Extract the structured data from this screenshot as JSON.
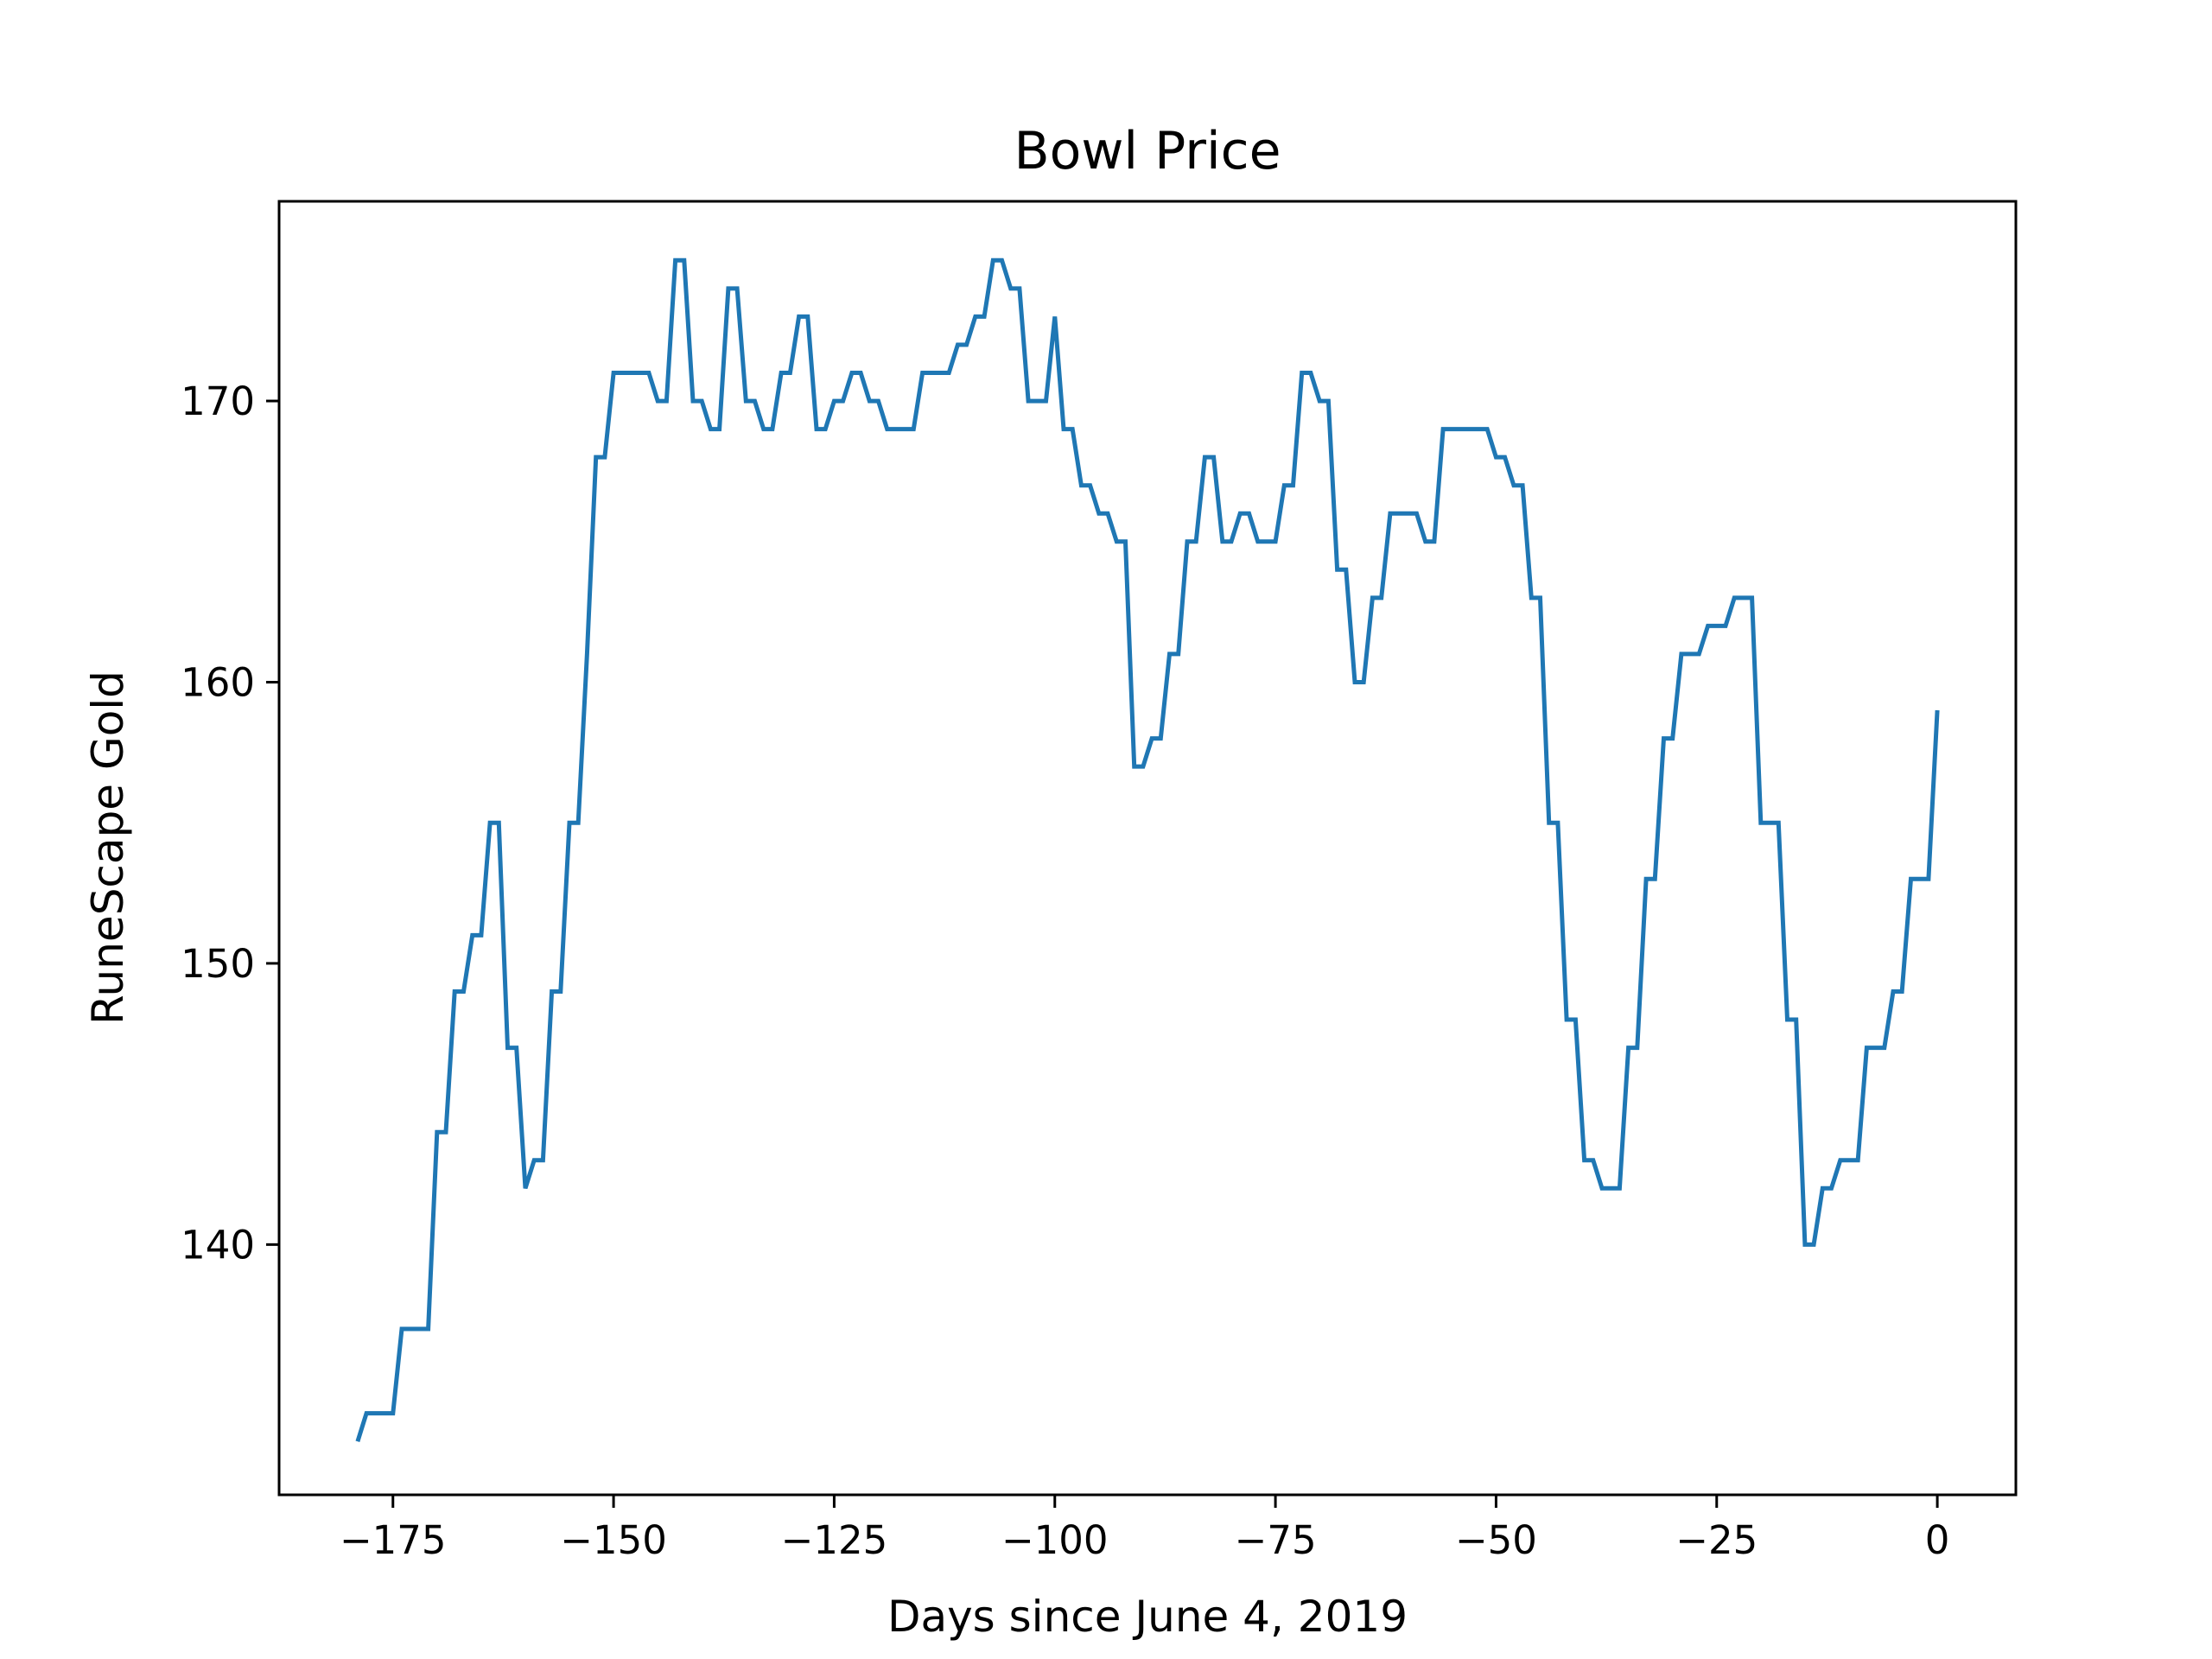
{
  "chart_data": {
    "type": "line",
    "title": "Bowl Price",
    "xlabel": "Days since June 4, 2019",
    "ylabel": "RuneScape Gold",
    "xlim": [
      -187.9,
      8.9
    ],
    "ylim": [
      131.1,
      177.1
    ],
    "xticks": [
      -175,
      -150,
      -125,
      -100,
      -75,
      -50,
      -25,
      0
    ],
    "xtick_labels": [
      "−175",
      "−150",
      "−125",
      "−100",
      "−75",
      "−50",
      "−25",
      "0"
    ],
    "yticks": [
      140,
      150,
      160,
      170
    ],
    "ytick_labels": [
      "140",
      "150",
      "160",
      "170"
    ],
    "grid": false,
    "line_color": "#1f77b4",
    "series": [
      {
        "x": [
          -179,
          -178,
          -177,
          -176,
          -175,
          -174,
          -173,
          -172,
          -171,
          -170,
          -169,
          -168,
          -167,
          -166,
          -165,
          -164,
          -163,
          -162,
          -161,
          -160,
          -159,
          -158,
          -157,
          -156,
          -155,
          -154,
          -153,
          -152,
          -151,
          -150,
          -149,
          -148,
          -147,
          -146,
          -145,
          -144,
          -143,
          -142,
          -141,
          -140,
          -139,
          -138,
          -137,
          -136,
          -135,
          -134,
          -133,
          -132,
          -131,
          -130,
          -129,
          -128,
          -127,
          -126,
          -125,
          -124,
          -123,
          -122,
          -121,
          -120,
          -119,
          -118,
          -117,
          -116,
          -115,
          -114,
          -113,
          -112,
          -111,
          -110,
          -109,
          -108,
          -107,
          -106,
          -105,
          -104,
          -103,
          -102,
          -101,
          -100,
          -99,
          -98,
          -97,
          -96,
          -95,
          -94,
          -93,
          -92,
          -91,
          -90,
          -89,
          -88,
          -87,
          -86,
          -85,
          -84,
          -83,
          -82,
          -81,
          -80,
          -79,
          -78,
          -77,
          -76,
          -75,
          -74,
          -73,
          -72,
          -71,
          -70,
          -69,
          -68,
          -67,
          -66,
          -65,
          -64,
          -63,
          -62,
          -61,
          -60,
          -59,
          -58,
          -57,
          -56,
          -55,
          -54,
          -53,
          -52,
          -51,
          -50,
          -49,
          -48,
          -47,
          -46,
          -45,
          -44,
          -43,
          -42,
          -41,
          -40,
          -39,
          -38,
          -37,
          -36,
          -35,
          -34,
          -33,
          -32,
          -31,
          -30,
          -29,
          -28,
          -27,
          -26,
          -25,
          -24,
          -23,
          -22,
          -21,
          -20,
          -19,
          -18,
          -17,
          -16,
          -15,
          -14,
          -13,
          -12,
          -11,
          -10,
          -9,
          -8,
          -7,
          -6,
          -5,
          -4,
          -3,
          -2,
          -1,
          0
        ],
        "y": [
          133,
          134,
          134,
          134,
          134,
          137,
          137,
          137,
          137,
          144,
          144,
          149,
          149,
          151,
          151,
          155,
          155,
          147,
          147,
          142,
          143,
          143,
          149,
          149,
          155,
          155,
          161,
          168,
          168,
          171,
          171,
          171,
          171,
          171,
          170,
          170,
          175,
          175,
          170,
          170,
          169,
          169,
          174,
          174,
          170,
          170,
          169,
          169,
          171,
          171,
          173,
          173,
          169,
          169,
          170,
          170,
          171,
          171,
          170,
          170,
          169,
          169,
          169,
          169,
          171,
          171,
          171,
          171,
          172,
          172,
          173,
          173,
          175,
          175,
          174,
          174,
          170,
          170,
          170,
          173,
          169,
          169,
          167,
          167,
          166,
          166,
          165,
          165,
          157,
          157,
          158,
          158,
          161,
          161,
          165,
          165,
          168,
          168,
          165,
          165,
          166,
          166,
          165,
          165,
          165,
          167,
          167,
          171,
          171,
          170,
          170,
          164,
          164,
          160,
          160,
          163,
          163,
          166,
          166,
          166,
          166,
          165,
          165,
          169,
          169,
          169,
          169,
          169,
          169,
          168,
          168,
          167,
          167,
          163,
          163,
          155,
          155,
          148,
          148,
          143,
          143,
          142,
          142,
          142,
          147,
          147,
          153,
          153,
          158,
          158,
          161,
          161,
          161,
          162,
          162,
          162,
          163,
          163,
          163,
          155,
          155,
          155,
          148,
          148,
          140,
          140,
          142,
          142,
          143,
          143,
          143,
          147,
          147,
          147,
          149,
          149,
          153,
          153,
          153,
          159
        ]
      }
    ]
  }
}
